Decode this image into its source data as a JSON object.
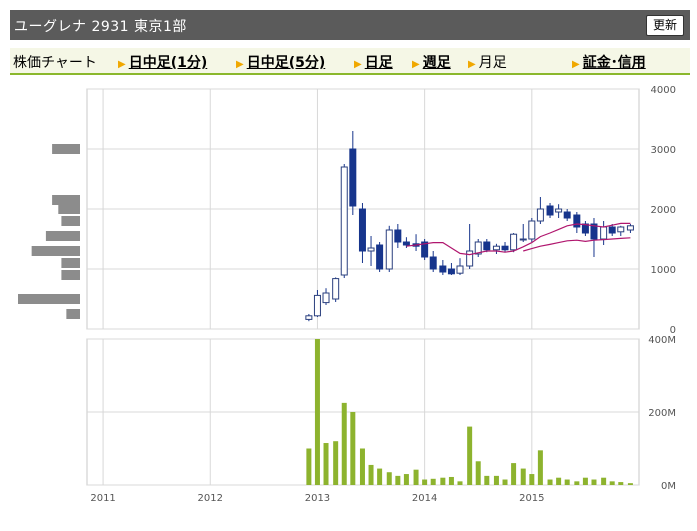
{
  "header": {
    "title": "ユーグレナ 2931 東京1部",
    "refresh_label": "更新"
  },
  "tabs": [
    {
      "label": "株価チャート",
      "link": false,
      "arrow": false
    },
    {
      "label": "日中足(1分)",
      "link": true,
      "arrow": true
    },
    {
      "label": "日中足(5分)",
      "link": true,
      "arrow": true
    },
    {
      "label": "日足",
      "link": true,
      "arrow": true
    },
    {
      "label": "週足",
      "link": true,
      "arrow": true
    },
    {
      "label": "月足",
      "link": false,
      "arrow": true
    },
    {
      "label": "証金･信用",
      "link": true,
      "arrow": true
    }
  ],
  "colors": {
    "tab_arrow": "#f0a800",
    "candle_down": "#17358c",
    "candle_up_fill": "#ffffff",
    "candle_up_border": "#2a3f7e",
    "ma_short": "#b0166e",
    "ma_long": "#b0166e",
    "volume_bar": "#8db32e",
    "volume_profile": "#8c8c8c"
  },
  "chart_data": [
    {
      "type": "candlestick",
      "x_tick_labels": [
        "2011",
        "2012",
        "2013",
        "2014",
        "2015"
      ],
      "y_tick_labels": [
        "4000",
        "3000",
        "2000",
        "1000",
        "0"
      ],
      "ylim": [
        0,
        4000
      ],
      "xlim": [
        2010.85,
        2016.0
      ],
      "grid": true,
      "candles": [
        {
          "t": 2012.92,
          "o": 160,
          "h": 250,
          "l": 130,
          "c": 220
        },
        {
          "t": 2013.0,
          "o": 220,
          "h": 650,
          "l": 200,
          "c": 560
        },
        {
          "t": 2013.08,
          "o": 440,
          "h": 680,
          "l": 400,
          "c": 600
        },
        {
          "t": 2013.17,
          "o": 500,
          "h": 860,
          "l": 450,
          "c": 840
        },
        {
          "t": 2013.25,
          "o": 900,
          "h": 2750,
          "l": 850,
          "c": 2700
        },
        {
          "t": 2013.33,
          "o": 3000,
          "h": 3300,
          "l": 1900,
          "c": 2050
        },
        {
          "t": 2013.42,
          "o": 2000,
          "h": 2100,
          "l": 1100,
          "c": 1300
        },
        {
          "t": 2013.5,
          "o": 1300,
          "h": 1550,
          "l": 1050,
          "c": 1350
        },
        {
          "t": 2013.58,
          "o": 1400,
          "h": 1450,
          "l": 950,
          "c": 1000
        },
        {
          "t": 2013.67,
          "o": 1000,
          "h": 1720,
          "l": 950,
          "c": 1650
        },
        {
          "t": 2013.75,
          "o": 1650,
          "h": 1750,
          "l": 1350,
          "c": 1450
        },
        {
          "t": 2013.83,
          "o": 1450,
          "h": 1530,
          "l": 1350,
          "c": 1400
        },
        {
          "t": 2013.92,
          "o": 1420,
          "h": 1580,
          "l": 1300,
          "c": 1380
        },
        {
          "t": 2014.0,
          "o": 1450,
          "h": 1500,
          "l": 1150,
          "c": 1200
        },
        {
          "t": 2014.08,
          "o": 1200,
          "h": 1300,
          "l": 950,
          "c": 1000
        },
        {
          "t": 2014.17,
          "o": 1050,
          "h": 1150,
          "l": 900,
          "c": 950
        },
        {
          "t": 2014.25,
          "o": 1000,
          "h": 1100,
          "l": 900,
          "c": 920
        },
        {
          "t": 2014.33,
          "o": 930,
          "h": 1180,
          "l": 900,
          "c": 1050
        },
        {
          "t": 2014.42,
          "o": 1050,
          "h": 1750,
          "l": 1000,
          "c": 1300
        },
        {
          "t": 2014.5,
          "o": 1250,
          "h": 1500,
          "l": 1200,
          "c": 1450
        },
        {
          "t": 2014.58,
          "o": 1450,
          "h": 1500,
          "l": 1280,
          "c": 1320
        },
        {
          "t": 2014.67,
          "o": 1320,
          "h": 1420,
          "l": 1250,
          "c": 1380
        },
        {
          "t": 2014.75,
          "o": 1380,
          "h": 1450,
          "l": 1280,
          "c": 1320
        },
        {
          "t": 2014.83,
          "o": 1320,
          "h": 1600,
          "l": 1280,
          "c": 1580
        },
        {
          "t": 2014.92,
          "o": 1500,
          "h": 1750,
          "l": 1450,
          "c": 1500
        },
        {
          "t": 2015.0,
          "o": 1500,
          "h": 1850,
          "l": 1450,
          "c": 1800
        },
        {
          "t": 2015.08,
          "o": 1800,
          "h": 2200,
          "l": 1750,
          "c": 2000
        },
        {
          "t": 2015.17,
          "o": 2050,
          "h": 2100,
          "l": 1850,
          "c": 1900
        },
        {
          "t": 2015.25,
          "o": 1950,
          "h": 2080,
          "l": 1850,
          "c": 2000
        },
        {
          "t": 2015.33,
          "o": 1950,
          "h": 2000,
          "l": 1800,
          "c": 1850
        },
        {
          "t": 2015.42,
          "o": 1900,
          "h": 1950,
          "l": 1600,
          "c": 1700
        },
        {
          "t": 2015.5,
          "o": 1750,
          "h": 1800,
          "l": 1550,
          "c": 1600
        },
        {
          "t": 2015.58,
          "o": 1750,
          "h": 1850,
          "l": 1200,
          "c": 1500
        },
        {
          "t": 2015.67,
          "o": 1500,
          "h": 1800,
          "l": 1400,
          "c": 1700
        },
        {
          "t": 2015.75,
          "o": 1700,
          "h": 1750,
          "l": 1550,
          "c": 1600
        },
        {
          "t": 2015.83,
          "o": 1620,
          "h": 1720,
          "l": 1550,
          "c": 1700
        },
        {
          "t": 2015.92,
          "o": 1650,
          "h": 1750,
          "l": 1600,
          "c": 1720
        }
      ],
      "ma_short": [
        [
          2013.83,
          1380
        ],
        [
          2013.92,
          1400
        ],
        [
          2014.0,
          1420
        ],
        [
          2014.08,
          1440
        ],
        [
          2014.17,
          1440
        ],
        [
          2014.25,
          1350
        ],
        [
          2014.33,
          1260
        ],
        [
          2014.42,
          1240
        ],
        [
          2014.5,
          1270
        ],
        [
          2014.58,
          1300
        ],
        [
          2014.67,
          1300
        ],
        [
          2014.75,
          1280
        ],
        [
          2014.83,
          1300
        ],
        [
          2014.92,
          1370
        ],
        [
          2015.0,
          1440
        ],
        [
          2015.08,
          1540
        ],
        [
          2015.17,
          1600
        ],
        [
          2015.25,
          1660
        ],
        [
          2015.33,
          1720
        ],
        [
          2015.42,
          1750
        ],
        [
          2015.5,
          1740
        ],
        [
          2015.58,
          1720
        ],
        [
          2015.67,
          1700
        ],
        [
          2015.75,
          1730
        ],
        [
          2015.83,
          1760
        ],
        [
          2015.92,
          1760
        ]
      ],
      "ma_long": [
        [
          2014.92,
          1300
        ],
        [
          2015.0,
          1340
        ],
        [
          2015.08,
          1380
        ],
        [
          2015.17,
          1410
        ],
        [
          2015.25,
          1440
        ],
        [
          2015.33,
          1470
        ],
        [
          2015.42,
          1480
        ],
        [
          2015.5,
          1460
        ],
        [
          2015.58,
          1480
        ],
        [
          2015.67,
          1490
        ],
        [
          2015.75,
          1500
        ],
        [
          2015.83,
          1510
        ],
        [
          2015.92,
          1520
        ]
      ],
      "volume_profile": [
        {
          "price": 3000,
          "size": 0.45
        },
        {
          "price": 2150,
          "size": 0.45
        },
        {
          "price": 2000,
          "size": 0.35
        },
        {
          "price": 1800,
          "size": 0.3
        },
        {
          "price": 1550,
          "size": 0.55
        },
        {
          "price": 1300,
          "size": 0.78
        },
        {
          "price": 1100,
          "size": 0.3
        },
        {
          "price": 900,
          "size": 0.3
        },
        {
          "price": 500,
          "size": 1.0
        },
        {
          "price": 250,
          "size": 0.22
        }
      ]
    },
    {
      "type": "bar",
      "y_tick_labels": [
        "400M",
        "200M",
        "0M"
      ],
      "ylim": [
        0,
        400
      ],
      "y_unit": "M",
      "grid": true,
      "volumes": [
        [
          2012.92,
          100
        ],
        [
          2013.0,
          400
        ],
        [
          2013.08,
          115
        ],
        [
          2013.17,
          120
        ],
        [
          2013.25,
          225
        ],
        [
          2013.33,
          200
        ],
        [
          2013.42,
          100
        ],
        [
          2013.5,
          55
        ],
        [
          2013.58,
          45
        ],
        [
          2013.67,
          35
        ],
        [
          2013.75,
          25
        ],
        [
          2013.83,
          30
        ],
        [
          2013.92,
          42
        ],
        [
          2014.0,
          15
        ],
        [
          2014.08,
          17
        ],
        [
          2014.17,
          20
        ],
        [
          2014.25,
          22
        ],
        [
          2014.33,
          10
        ],
        [
          2014.42,
          160
        ],
        [
          2014.5,
          65
        ],
        [
          2014.58,
          25
        ],
        [
          2014.67,
          25
        ],
        [
          2014.75,
          15
        ],
        [
          2014.83,
          60
        ],
        [
          2014.92,
          45
        ],
        [
          2015.0,
          30
        ],
        [
          2015.08,
          95
        ],
        [
          2015.17,
          15
        ],
        [
          2015.25,
          20
        ],
        [
          2015.33,
          15
        ],
        [
          2015.42,
          10
        ],
        [
          2015.5,
          20
        ],
        [
          2015.58,
          15
        ],
        [
          2015.67,
          20
        ],
        [
          2015.75,
          10
        ],
        [
          2015.83,
          8
        ],
        [
          2015.92,
          5
        ]
      ]
    }
  ]
}
